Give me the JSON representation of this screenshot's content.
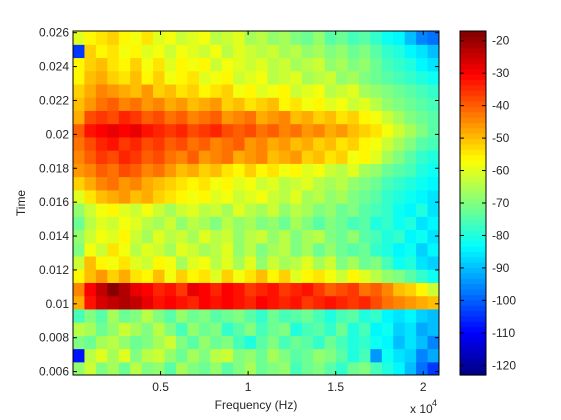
{
  "chart_data": {
    "type": "heatmap",
    "title": "",
    "xlabel": "Frequency (Hz)",
    "ylabel": "Time",
    "x_exponent_label": "x 10",
    "x_exponent_power": "4",
    "x_range": [
      0,
      20900
    ],
    "y_range": [
      0.0058,
      0.0261
    ],
    "x_ticks": [
      5000,
      10000,
      15000,
      20000
    ],
    "x_tick_labels": [
      "0.5",
      "1",
      "1.5",
      "2"
    ],
    "y_ticks": [
      0.006,
      0.008,
      0.01,
      0.012,
      0.014,
      0.016,
      0.018,
      0.02,
      0.022,
      0.024,
      0.026
    ],
    "y_tick_labels": [
      "0.006",
      "0.008",
      "0.01",
      "0.012",
      "0.014",
      "0.016",
      "0.018",
      "0.02",
      "0.022",
      "0.024",
      "0.026"
    ],
    "colorbar": {
      "colormap": "jet",
      "range": [
        -123,
        -17
      ],
      "ticks": [
        -20,
        -30,
        -40,
        -50,
        -60,
        -70,
        -80,
        -90,
        -100,
        -110,
        -120
      ],
      "tick_labels": [
        "-20",
        "-30",
        "-40",
        "-50",
        "-60",
        "-70",
        "-80",
        "-90",
        "-100",
        "-110",
        "-120"
      ]
    },
    "grid": false,
    "note_values": "approximate power level (dB) per time-frequency cell, rows listed from bottom (t=0.006) to top (t=0.026), 32 frequency bins each",
    "rows": [
      [
        -68,
        -62,
        -70,
        -66,
        -72,
        -64,
        -70,
        -68,
        -74,
        -66,
        -70,
        -72,
        -68,
        -74,
        -70,
        -66,
        -72,
        -70,
        -68,
        -76,
        -72,
        -70,
        -74,
        -78,
        -72,
        -70,
        -76,
        -80,
        -84,
        -90,
        -98,
        -104
      ],
      [
        -108,
        -64,
        -60,
        -66,
        -60,
        -70,
        -64,
        -62,
        -68,
        -72,
        -66,
        -70,
        -64,
        -62,
        -70,
        -68,
        -72,
        -66,
        -70,
        -74,
        -72,
        -68,
        -70,
        -74,
        -80,
        -76,
        -94,
        -82,
        -86,
        -88,
        -96,
        -92
      ],
      [
        -70,
        -72,
        -66,
        -64,
        -68,
        -72,
        -70,
        -66,
        -62,
        -70,
        -74,
        -68,
        -72,
        -70,
        -76,
        -80,
        -74,
        -70,
        -76,
        -72,
        -74,
        -78,
        -72,
        -76,
        -80,
        -78,
        -82,
        -84,
        -90,
        -86,
        -90,
        -96
      ],
      [
        -64,
        -66,
        -72,
        -68,
        -62,
        -66,
        -70,
        -64,
        -70,
        -76,
        -68,
        -72,
        -70,
        -78,
        -74,
        -70,
        -76,
        -72,
        -70,
        -80,
        -76,
        -74,
        -78,
        -72,
        -80,
        -76,
        -84,
        -82,
        -88,
        -86,
        -92,
        -90
      ],
      [
        -76,
        -70,
        -74,
        -66,
        -72,
        -70,
        -64,
        -70,
        -74,
        -68,
        -72,
        -70,
        -74,
        -72,
        -70,
        -74,
        -78,
        -72,
        -76,
        -74,
        -72,
        -76,
        -80,
        -76,
        -74,
        -80,
        -78,
        -84,
        -86,
        -84,
        -88,
        -90
      ],
      [
        -48,
        -32,
        -26,
        -24,
        -22,
        -24,
        -28,
        -32,
        -30,
        -32,
        -34,
        -30,
        -32,
        -30,
        -32,
        -34,
        -30,
        -32,
        -34,
        -32,
        -36,
        -34,
        -32,
        -34,
        -36,
        -34,
        -38,
        -42,
        -44,
        -46,
        -48,
        -50
      ],
      [
        -44,
        -30,
        -24,
        -18,
        -22,
        -28,
        -30,
        -34,
        -32,
        -36,
        -28,
        -30,
        -34,
        -30,
        -32,
        -36,
        -34,
        -32,
        -36,
        -34,
        -32,
        -36,
        -40,
        -38,
        -36,
        -42,
        -40,
        -44,
        -50,
        -52,
        -56,
        -62
      ],
      [
        -56,
        -50,
        -46,
        -52,
        -48,
        -54,
        -56,
        -50,
        -58,
        -52,
        -56,
        -54,
        -60,
        -52,
        -58,
        -54,
        -50,
        -56,
        -52,
        -60,
        -56,
        -54,
        -58,
        -62,
        -56,
        -60,
        -64,
        -68,
        -70,
        -74,
        -78,
        -82
      ],
      [
        -62,
        -50,
        -56,
        -58,
        -54,
        -60,
        -62,
        -56,
        -58,
        -66,
        -60,
        -58,
        -64,
        -60,
        -66,
        -60,
        -68,
        -62,
        -66,
        -64,
        -60,
        -66,
        -62,
        -70,
        -66,
        -72,
        -70,
        -76,
        -82,
        -80,
        -86,
        -88
      ],
      [
        -70,
        -58,
        -62,
        -54,
        -58,
        -64,
        -60,
        -62,
        -66,
        -60,
        -62,
        -66,
        -64,
        -60,
        -68,
        -64,
        -70,
        -66,
        -64,
        -70,
        -66,
        -72,
        -68,
        -72,
        -74,
        -72,
        -78,
        -80,
        -84,
        -82,
        -88,
        -84
      ],
      [
        -68,
        -62,
        -58,
        -60,
        -56,
        -62,
        -66,
        -60,
        -64,
        -62,
        -66,
        -60,
        -64,
        -62,
        -68,
        -64,
        -62,
        -68,
        -64,
        -70,
        -66,
        -64,
        -70,
        -72,
        -68,
        -74,
        -76,
        -80,
        -78,
        -84,
        -82,
        -86
      ],
      [
        -72,
        -64,
        -60,
        -62,
        -58,
        -60,
        -64,
        -66,
        -62,
        -68,
        -64,
        -66,
        -70,
        -64,
        -68,
        -66,
        -70,
        -68,
        -72,
        -66,
        -70,
        -74,
        -70,
        -72,
        -76,
        -74,
        -80,
        -78,
        -82,
        -80,
        -86,
        -84
      ],
      [
        -68,
        -62,
        -58,
        -56,
        -60,
        -62,
        -58,
        -62,
        -66,
        -62,
        -60,
        -64,
        -62,
        -66,
        -60,
        -64,
        -66,
        -62,
        -68,
        -64,
        -66,
        -70,
        -68,
        -72,
        -70,
        -74,
        -76,
        -78,
        -82,
        -84,
        -80,
        -86
      ],
      [
        -60,
        -54,
        -50,
        -48,
        -46,
        -50,
        -48,
        -52,
        -54,
        -56,
        -58,
        -56,
        -60,
        -58,
        -62,
        -60,
        -58,
        -62,
        -64,
        -60,
        -66,
        -64,
        -68,
        -66,
        -70,
        -72,
        -74,
        -78,
        -80,
        -82,
        -84,
        -86
      ],
      [
        -52,
        -48,
        -44,
        -42,
        -46,
        -44,
        -48,
        -50,
        -52,
        -54,
        -56,
        -54,
        -58,
        -56,
        -60,
        -58,
        -62,
        -60,
        -64,
        -62,
        -60,
        -64,
        -66,
        -64,
        -68,
        -70,
        -72,
        -76,
        -78,
        -80,
        -82,
        -84
      ],
      [
        -46,
        -44,
        -40,
        -42,
        -38,
        -40,
        -44,
        -42,
        -46,
        -50,
        -48,
        -52,
        -50,
        -54,
        -56,
        -52,
        -56,
        -54,
        -58,
        -56,
        -60,
        -58,
        -62,
        -64,
        -60,
        -66,
        -68,
        -72,
        -74,
        -76,
        -80,
        -82
      ],
      [
        -44,
        -40,
        -36,
        -38,
        -34,
        -36,
        -40,
        -38,
        -42,
        -44,
        -40,
        -46,
        -44,
        -42,
        -48,
        -46,
        -44,
        -50,
        -48,
        -46,
        -52,
        -50,
        -54,
        -52,
        -58,
        -56,
        -60,
        -66,
        -70,
        -74,
        -78,
        -80
      ],
      [
        -42,
        -38,
        -34,
        -32,
        -36,
        -34,
        -38,
        -36,
        -40,
        -38,
        -42,
        -40,
        -44,
        -42,
        -40,
        -46,
        -44,
        -48,
        -46,
        -50,
        -48,
        -52,
        -50,
        -54,
        -52,
        -56,
        -58,
        -62,
        -66,
        -70,
        -74,
        -76
      ],
      [
        -40,
        -32,
        -30,
        -28,
        -30,
        -28,
        -32,
        -34,
        -36,
        -34,
        -38,
        -36,
        -34,
        -38,
        -40,
        -38,
        -42,
        -40,
        -44,
        -42,
        -46,
        -44,
        -48,
        -46,
        -50,
        -52,
        -54,
        -58,
        -62,
        -66,
        -70,
        -74
      ],
      [
        -48,
        -38,
        -36,
        -38,
        -34,
        -36,
        -40,
        -38,
        -42,
        -40,
        -44,
        -42,
        -40,
        -46,
        -44,
        -42,
        -48,
        -46,
        -44,
        -50,
        -48,
        -52,
        -50,
        -54,
        -52,
        -56,
        -58,
        -62,
        -66,
        -70,
        -72,
        -74
      ],
      [
        -50,
        -46,
        -42,
        -40,
        -44,
        -42,
        -46,
        -44,
        -48,
        -46,
        -50,
        -48,
        -46,
        -52,
        -50,
        -54,
        -52,
        -50,
        -56,
        -54,
        -58,
        -56,
        -60,
        -58,
        -62,
        -60,
        -64,
        -68,
        -70,
        -72,
        -74,
        -76
      ],
      [
        -52,
        -48,
        -44,
        -46,
        -48,
        -50,
        -46,
        -52,
        -50,
        -54,
        -52,
        -56,
        -54,
        -52,
        -58,
        -56,
        -60,
        -58,
        -56,
        -62,
        -60,
        -58,
        -64,
        -62,
        -60,
        -66,
        -68,
        -70,
        -72,
        -74,
        -76,
        -78
      ],
      [
        -56,
        -50,
        -48,
        -52,
        -54,
        -50,
        -56,
        -52,
        -58,
        -56,
        -54,
        -60,
        -58,
        -56,
        -62,
        -60,
        -58,
        -64,
        -62,
        -60,
        -66,
        -64,
        -62,
        -68,
        -66,
        -70,
        -72,
        -74,
        -76,
        -78,
        -80,
        -82
      ],
      [
        -56,
        -52,
        -50,
        -54,
        -56,
        -52,
        -58,
        -54,
        -60,
        -56,
        -58,
        -56,
        -62,
        -58,
        -60,
        -62,
        -60,
        -64,
        -62,
        -66,
        -64,
        -62,
        -68,
        -66,
        -70,
        -68,
        -72,
        -76,
        -78,
        -80,
        -84,
        -86
      ],
      [
        -104,
        -52,
        -56,
        -54,
        -58,
        -56,
        -60,
        -58,
        -62,
        -58,
        -60,
        -62,
        -58,
        -64,
        -60,
        -62,
        -64,
        -62,
        -66,
        -64,
        -68,
        -66,
        -70,
        -68,
        -72,
        -70,
        -74,
        -78,
        -80,
        -84,
        -86,
        -90
      ],
      [
        -60,
        -56,
        -54,
        -52,
        -56,
        -58,
        -54,
        -60,
        -58,
        -62,
        -60,
        -58,
        -64,
        -62,
        -60,
        -66,
        -64,
        -68,
        -66,
        -70,
        -72,
        -68,
        -74,
        -72,
        -76,
        -74,
        -78,
        -82,
        -84,
        -90,
        -96,
        -98
      ]
    ]
  }
}
